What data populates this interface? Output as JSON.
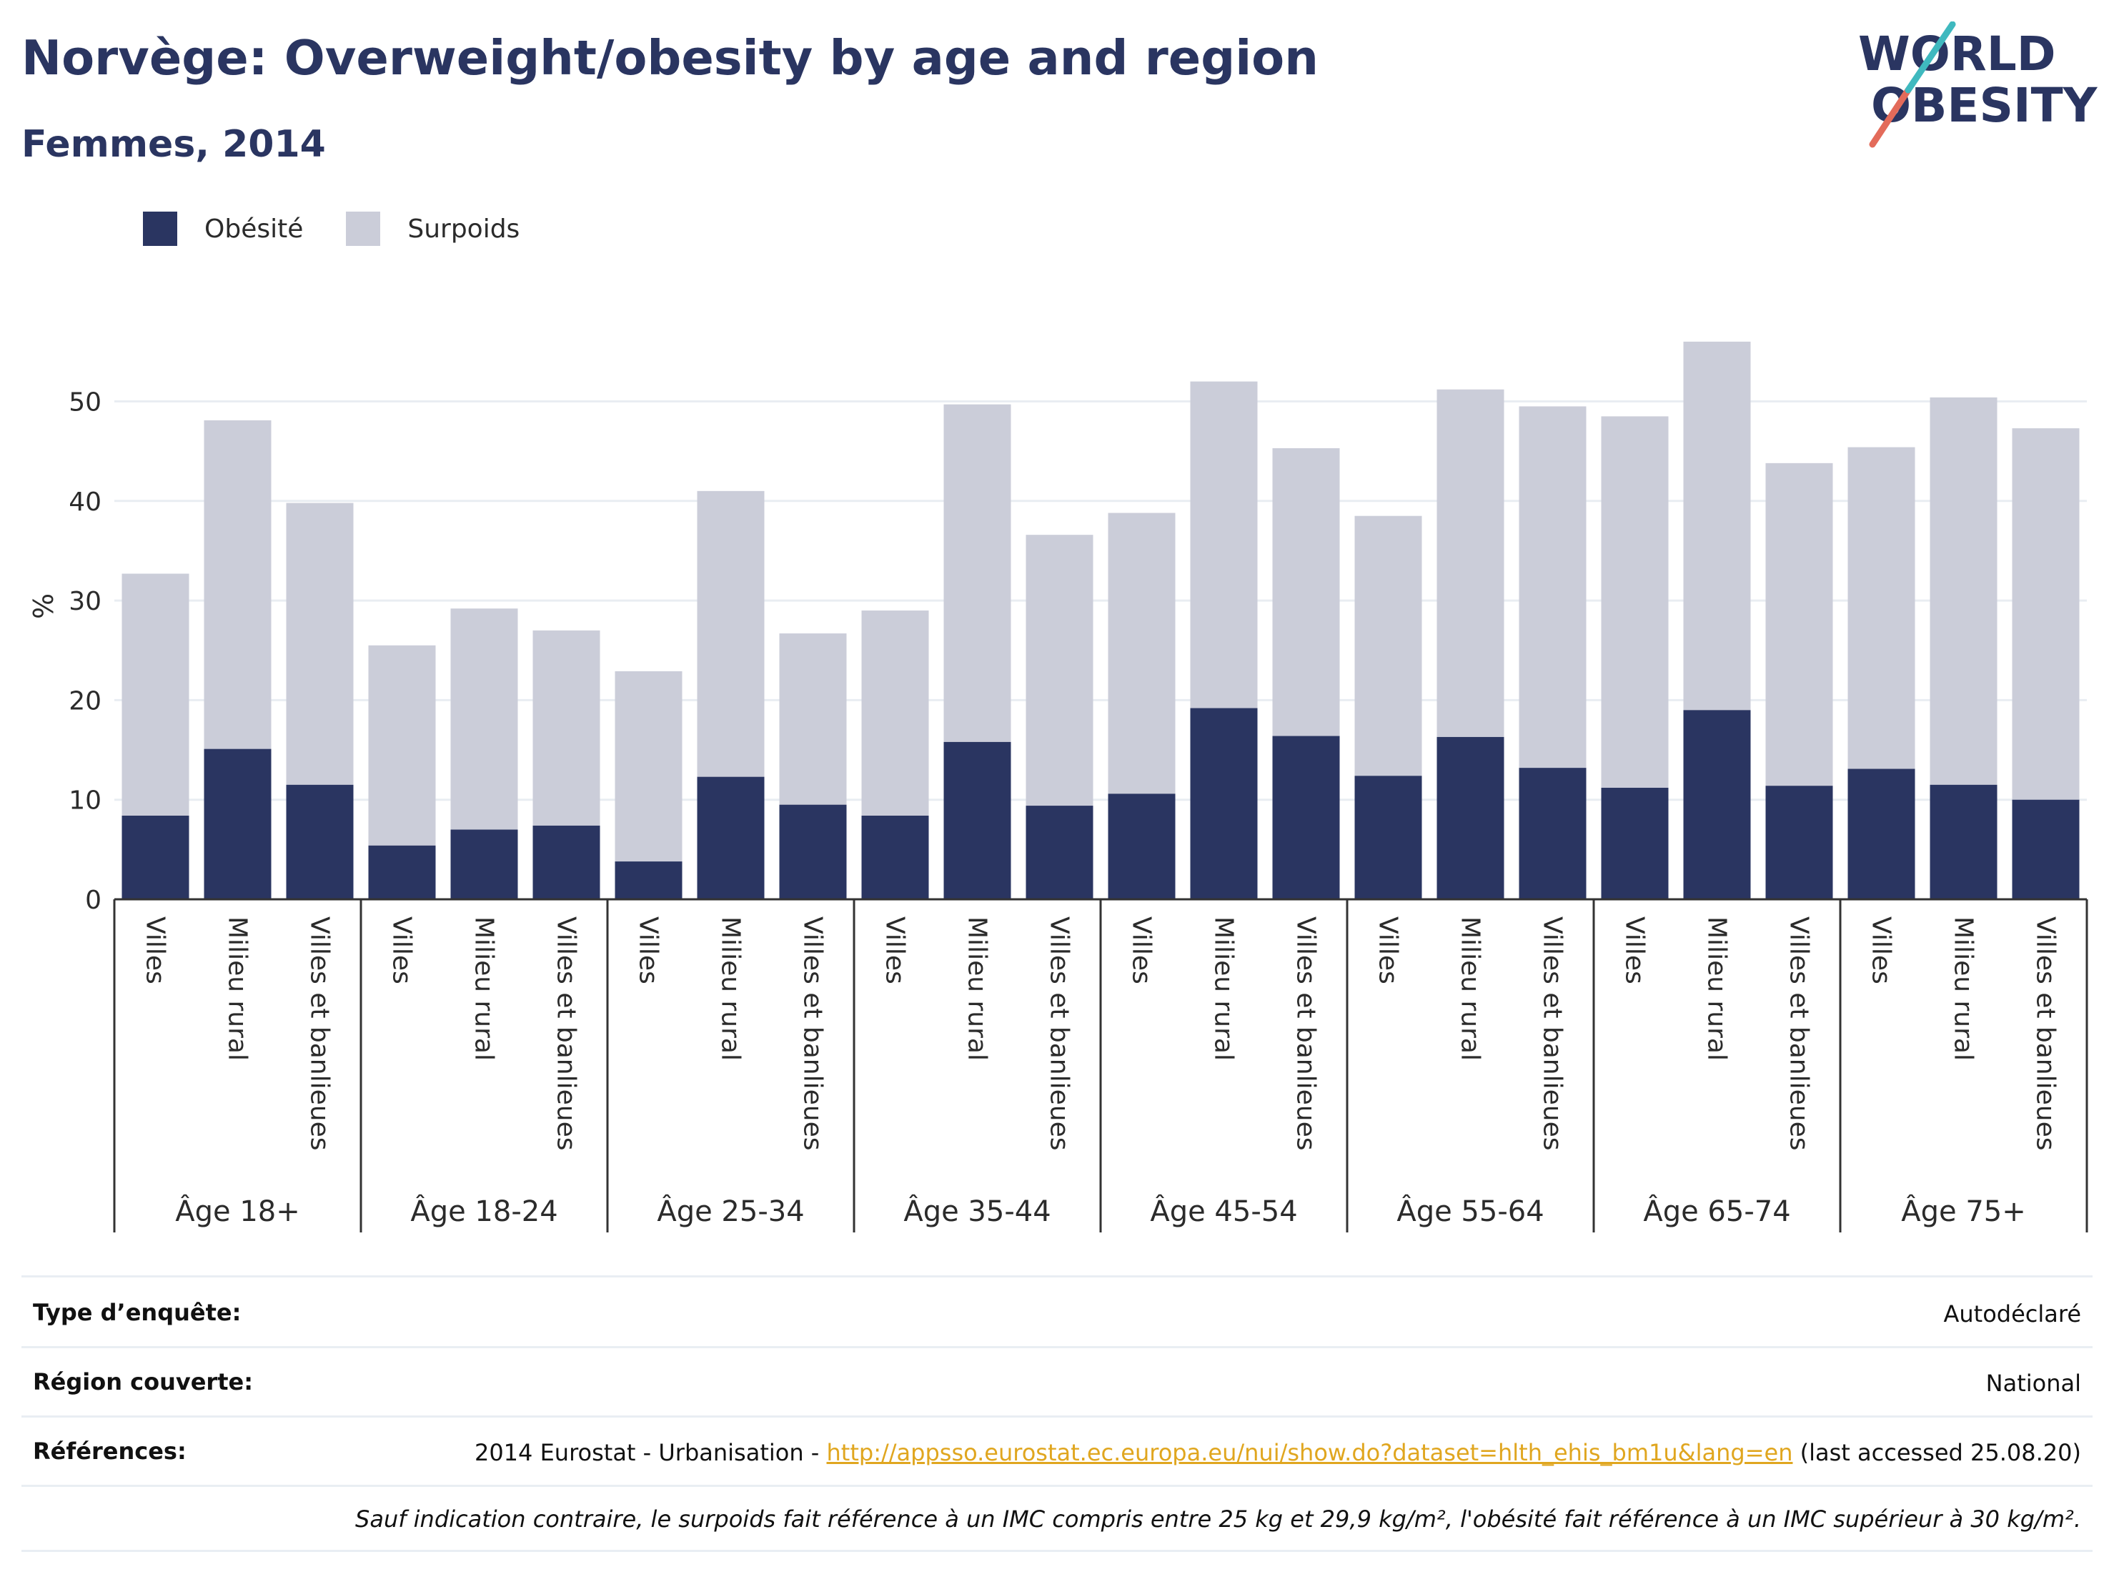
{
  "title": "Norvège: Overweight/obesity by age and region",
  "subtitle": "Femmes, 2014",
  "logo": {
    "line1": "WORLD",
    "line2": "OBESITY"
  },
  "colors": {
    "obesity": "#2a3561",
    "overweight": "#cbcdd9",
    "title": "#2a3561",
    "link": "#e0a61f"
  },
  "legend": [
    {
      "label": "Obésité",
      "color": "#2a3561"
    },
    {
      "label": "Surpoids",
      "color": "#cbcdd9"
    }
  ],
  "chart_data": {
    "type": "bar",
    "stacked": true,
    "ylabel": "%",
    "xlabel": "",
    "ylim": [
      0,
      60
    ],
    "yticks": [
      0,
      10,
      20,
      30,
      40,
      50
    ],
    "grid": true,
    "legend_position": "top-left",
    "groups": [
      "Âge 18+",
      "Âge 18-24",
      "Âge 25-34",
      "Âge 35-44",
      "Âge 45-54",
      "Âge 55-64",
      "Âge 65-74",
      "Âge 75+"
    ],
    "categories": [
      "Villes",
      "Milieu rural",
      "Villes et banlieues"
    ],
    "series": [
      {
        "name": "Obésité",
        "values": [
          [
            8.4,
            15.1,
            11.5
          ],
          [
            5.4,
            7.0,
            7.4
          ],
          [
            3.8,
            12.3,
            9.5
          ],
          [
            8.4,
            15.8,
            9.4
          ],
          [
            10.6,
            19.2,
            16.4
          ],
          [
            12.4,
            16.3,
            13.2
          ],
          [
            11.2,
            19.0,
            11.4
          ],
          [
            13.1,
            11.5,
            10.0
          ]
        ]
      },
      {
        "name": "Surpoids",
        "values": [
          [
            24.3,
            33.0,
            28.3
          ],
          [
            20.1,
            22.2,
            19.6
          ],
          [
            19.1,
            28.7,
            17.2
          ],
          [
            20.6,
            33.9,
            27.2
          ],
          [
            28.2,
            32.8,
            28.9
          ],
          [
            26.1,
            34.9,
            36.3
          ],
          [
            37.3,
            37.0,
            32.4
          ],
          [
            32.3,
            38.9,
            37.3
          ]
        ]
      }
    ]
  },
  "meta": {
    "survey_type_label": "Type d’enquête:",
    "survey_type_value": "Autodéclaré",
    "region_label": "Région couverte:",
    "region_value": "National",
    "refs_label": "Références:",
    "refs_prefix": "2014 Eurostat - Urbanisation - ",
    "refs_link": "http://appsso.eurostat.ec.europa.eu/nui/show.do?dataset=hlth_ehis_bm1u&lang=en",
    "refs_suffix": " (last accessed 25.08.20)",
    "note": "Sauf indication contraire, le surpoids fait référence à un IMC compris entre 25 kg et 29,9 kg/m², l'obésité fait référence à un IMC supérieur à 30 kg/m²."
  }
}
